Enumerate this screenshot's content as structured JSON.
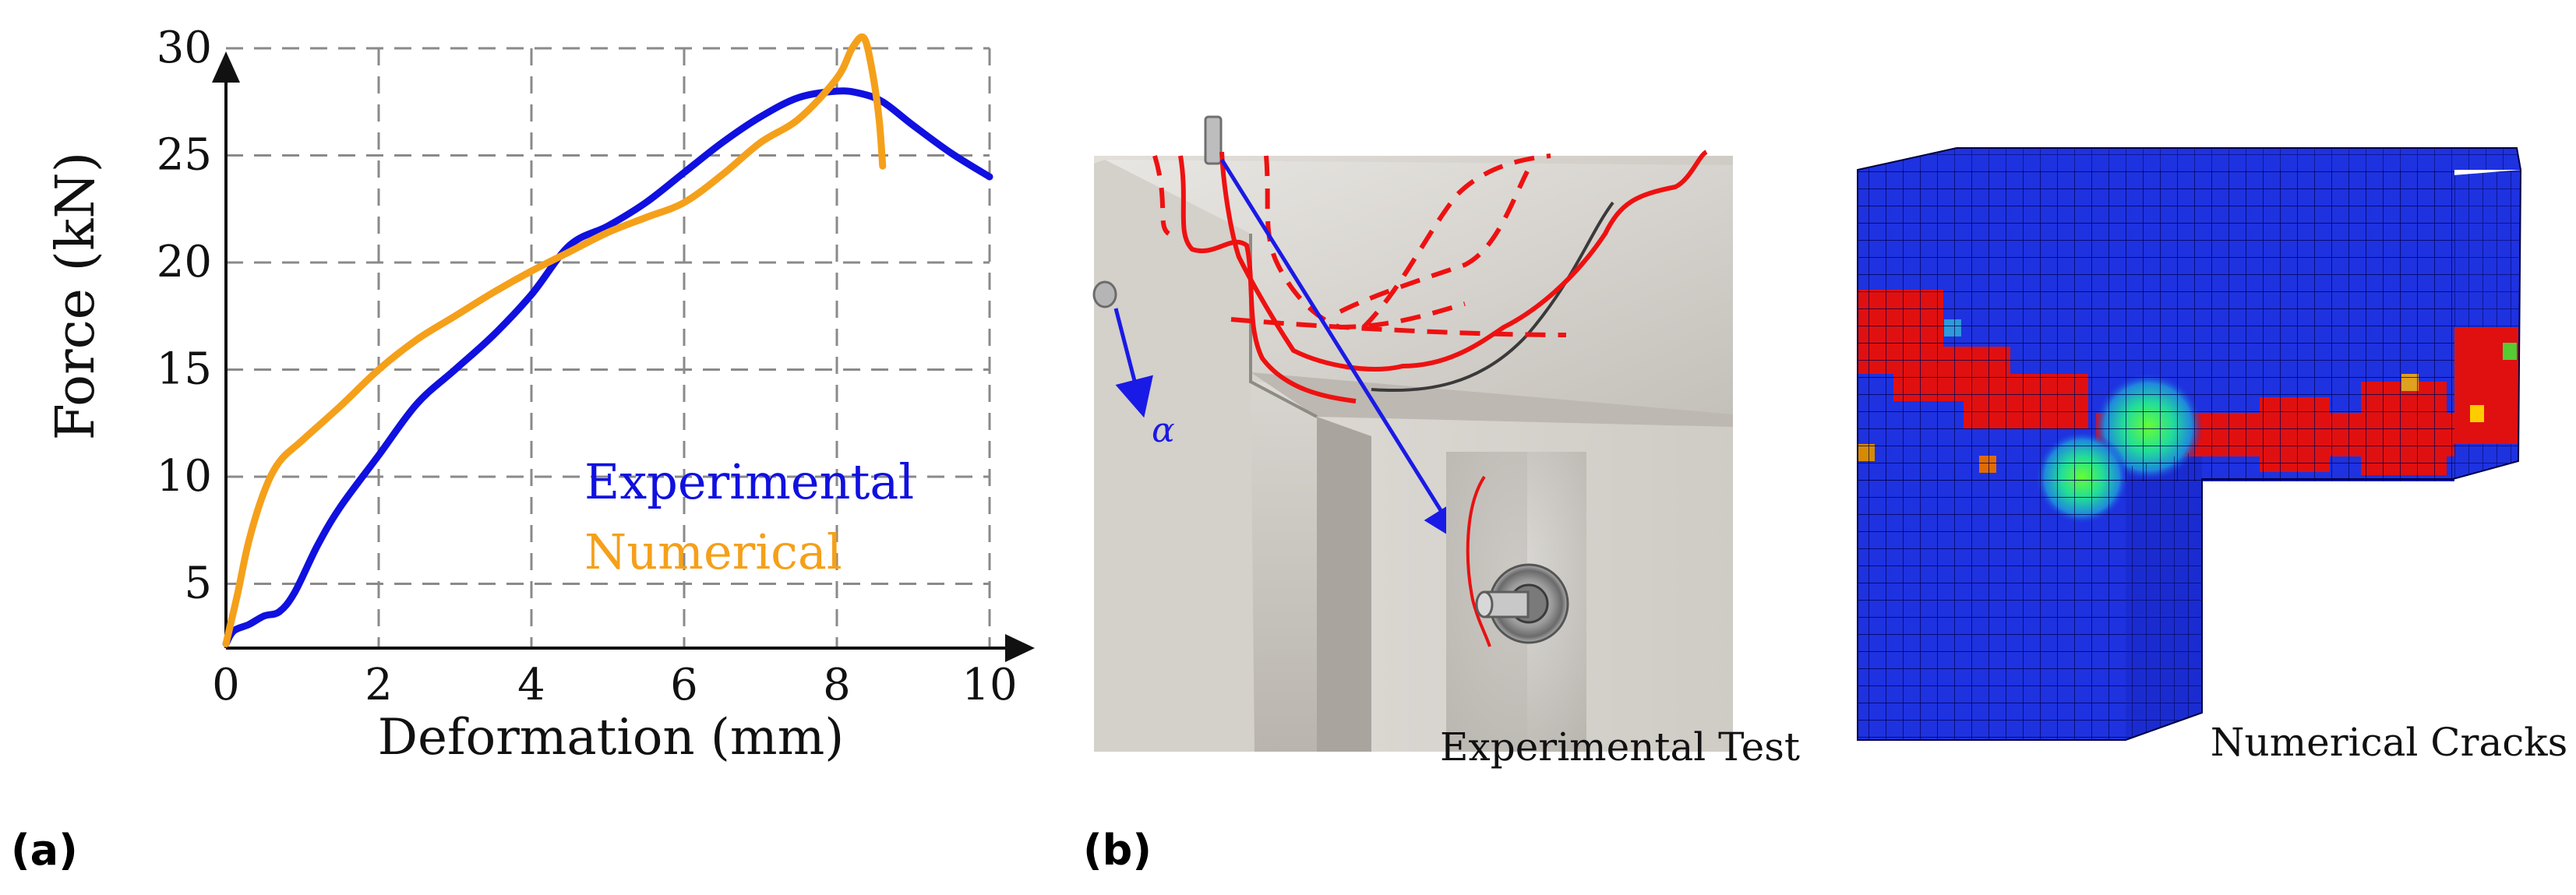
{
  "panels": {
    "a_label": "(a)",
    "b_label": "(b)"
  },
  "chart_data": {
    "type": "line",
    "xlabel": "Deformation (mm)",
    "ylabel": "Force (kN)",
    "xlim": [
      0,
      10
    ],
    "ylim": [
      2,
      30
    ],
    "xticks": [
      0,
      2,
      4,
      6,
      8,
      10
    ],
    "yticks": [
      5,
      10,
      15,
      20,
      25,
      30
    ],
    "grid": true,
    "legend_position": "bottom-right",
    "series": [
      {
        "name": "Experimental",
        "color": "#1010e0",
        "x": [
          0,
          0.1,
          0.3,
          0.5,
          0.7,
          0.9,
          1.2,
          1.5,
          2.0,
          2.5,
          3.0,
          3.5,
          4.0,
          4.5,
          5.0,
          5.5,
          6.0,
          6.5,
          7.0,
          7.5,
          8.0,
          8.3,
          8.6,
          9.0,
          9.5,
          10.0
        ],
        "y": [
          2.2,
          2.8,
          3.1,
          3.5,
          3.7,
          4.6,
          6.8,
          8.6,
          11.0,
          13.4,
          15.0,
          16.6,
          18.5,
          20.8,
          21.7,
          22.8,
          24.2,
          25.6,
          26.8,
          27.7,
          28.0,
          27.9,
          27.5,
          26.4,
          25.1,
          24.0
        ]
      },
      {
        "name": "Numerical",
        "color": "#f5a01a",
        "x": [
          0,
          0.15,
          0.3,
          0.5,
          0.7,
          1.0,
          1.5,
          2.0,
          2.5,
          3.0,
          3.5,
          4.0,
          4.5,
          5.0,
          5.5,
          6.0,
          6.5,
          7.0,
          7.5,
          8.0,
          8.2,
          8.35,
          8.45,
          8.55,
          8.6
        ],
        "y": [
          2.2,
          4.5,
          7.0,
          9.3,
          10.7,
          11.7,
          13.3,
          15.0,
          16.4,
          17.5,
          18.6,
          19.6,
          20.5,
          21.4,
          22.1,
          22.8,
          24.1,
          25.6,
          26.7,
          28.6,
          30.0,
          30.5,
          29.2,
          26.8,
          24.5
        ]
      }
    ]
  },
  "photo_panel": {
    "title": "Experimental Test",
    "angle_symbol": "α"
  },
  "mesh_panel": {
    "title": "Numerical Cracks"
  }
}
